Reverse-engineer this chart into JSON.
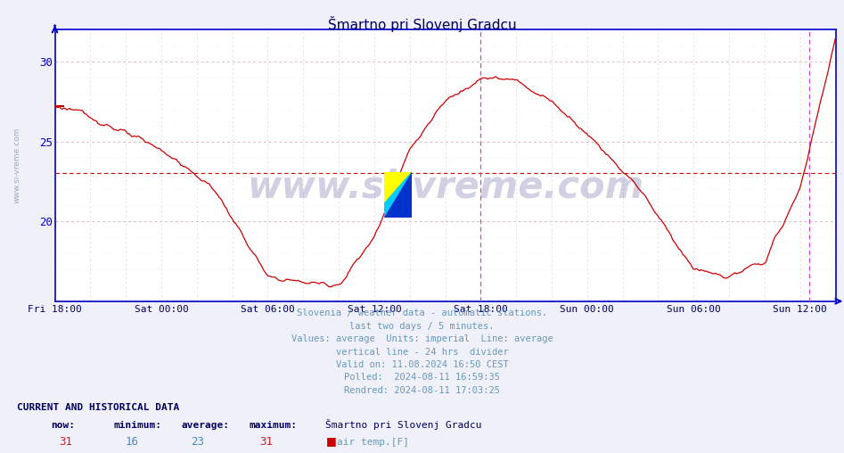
{
  "title": "Šmartno pri Slovenj Gradcu",
  "background_color": "#f0f0f8",
  "plot_bg_color": "#ffffff",
  "line_color": "#cc0000",
  "axis_color": "#0000cc",
  "text_color": "#6699bb",
  "title_color": "#000066",
  "xlabel_color": "#000066",
  "ymin": 15,
  "ymax": 32,
  "yticks": [
    20,
    25,
    30
  ],
  "x_labels": [
    "Fri 18:00",
    "Sat 00:00",
    "Sat 06:00",
    "Sat 12:00",
    "Sat 18:00",
    "Sun 00:00",
    "Sun 06:00",
    "Sun 12:00"
  ],
  "tick_hours": [
    0,
    6,
    12,
    18,
    24,
    30,
    36,
    42
  ],
  "total_hours": 44.0,
  "average_line_y": 23,
  "vline1_hour": 24,
  "vline2_hour": 42.5,
  "vline_color": "#cc44cc",
  "grid_major_color": "#ddbbbb",
  "grid_minor_color": "#eedddd",
  "watermark_text": "www.si-vreme.com",
  "watermark_color": "#000066",
  "watermark_alpha": 0.18,
  "info_lines": [
    "Slovenia / weather data - automatic stations.",
    "last two days / 5 minutes.",
    "Values: average  Units: imperial  Line: average",
    "vertical line - 24 hrs  divider",
    "Valid on: 11.08.2024 16:50 CEST",
    "Polled:  2024-08-11 16:59:35",
    "Rendred: 2024-08-11 17:03:25"
  ],
  "footer_label": "CURRENT AND HISTORICAL DATA",
  "footer_cols": [
    "now:",
    "minimum:",
    "average:",
    "maximum:",
    "Šmartno pri Slovenj Gradcu"
  ],
  "footer_values": [
    "31",
    "16",
    "23",
    "31"
  ],
  "footer_val_colors": [
    "#cc2222",
    "#4488cc",
    "#4488cc",
    "#cc2222"
  ],
  "footer_series": "air temp.[F]",
  "logo_yellow": "#ffff00",
  "logo_cyan": "#00ccff",
  "logo_blue": "#0033cc",
  "keypoints_h": [
    0,
    1,
    3,
    6,
    9,
    12,
    14,
    16,
    18,
    20,
    22,
    24,
    26,
    28,
    30,
    33,
    36,
    38,
    40,
    42,
    44
  ],
  "keypoints_v": [
    27.2,
    27.0,
    26.0,
    24.5,
    22.0,
    16.5,
    16.2,
    16.0,
    19.0,
    24.5,
    27.5,
    29.0,
    28.8,
    27.5,
    25.5,
    22.0,
    17.0,
    16.5,
    17.5,
    22.0,
    31.5
  ]
}
